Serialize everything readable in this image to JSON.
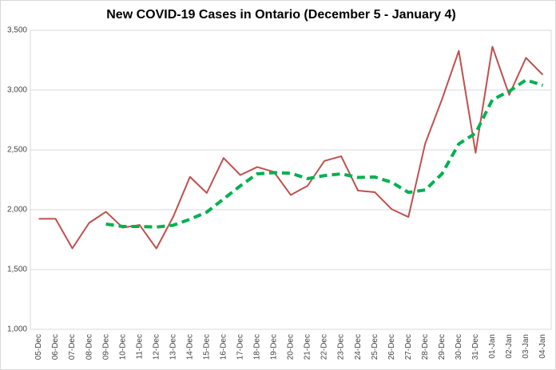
{
  "chart_data": {
    "type": "line",
    "title": "New COVID-19 Cases in Ontario (December 5 - January 4)",
    "categories": [
      "05-Dec",
      "06-Dec",
      "07-Dec",
      "08-Dec",
      "09-Dec",
      "10-Dec",
      "11-Dec",
      "12-Dec",
      "13-Dec",
      "14-Dec",
      "15-Dec",
      "16-Dec",
      "17-Dec",
      "18-Dec",
      "19-Dec",
      "20-Dec",
      "21-Dec",
      "22-Dec",
      "23-Dec",
      "24-Dec",
      "25-Dec",
      "26-Dec",
      "27-Dec",
      "28-Dec",
      "29-Dec",
      "30-Dec",
      "31-Dec",
      "01-Jan",
      "02-Jan",
      "03-Jan",
      "04-Jan"
    ],
    "series": [
      {
        "color": "#c0504d",
        "dashed": false,
        "values": [
          1924,
          1924,
          1677,
          1890,
          1983,
          1850,
          1873,
          1676,
          1940,
          2275,
          2140,
          2432,
          2290,
          2357,
          2316,
          2123,
          2200,
          2408,
          2447,
          2160,
          2147,
          2005,
          1939,
          2553,
          2923,
          3328,
          2476,
          3363,
          2960,
          3270,
          3128
        ]
      },
      {
        "color": "#00b050",
        "dashed": true,
        "values": [
          null,
          null,
          null,
          null,
          1880,
          1860,
          1860,
          1855,
          1870,
          1920,
          1980,
          2090,
          2200,
          2300,
          2310,
          2305,
          2260,
          2285,
          2300,
          2270,
          2273,
          2230,
          2145,
          2165,
          2300,
          2550,
          2640,
          2920,
          2990,
          3085,
          3040
        ]
      }
    ],
    "ylim": [
      1000,
      3500
    ],
    "yticks": [
      {
        "value": 1000,
        "label": "1,000"
      },
      {
        "value": 1500,
        "label": "1,500"
      },
      {
        "value": 2000,
        "label": "2,000"
      },
      {
        "value": 2500,
        "label": "2,500"
      },
      {
        "value": 3000,
        "label": "3,000"
      },
      {
        "value": 3500,
        "label": "3,500"
      }
    ],
    "grid": true
  }
}
